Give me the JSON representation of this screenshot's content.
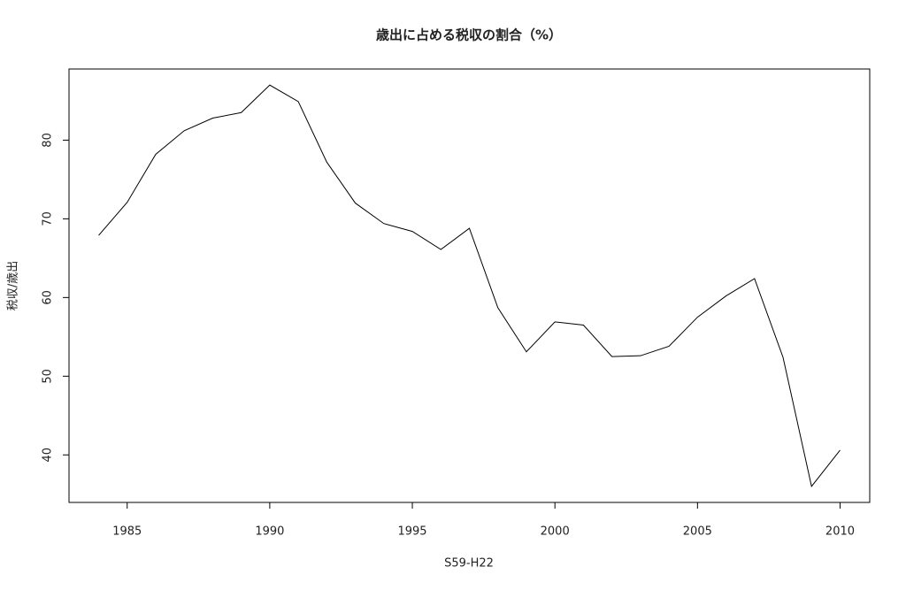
{
  "chart_data": {
    "type": "line",
    "title": "歳出に占める税収の割合（%）",
    "x_label": "S59-H22",
    "y_label": "税収/歳出",
    "x": [
      1984,
      1985,
      1986,
      1987,
      1988,
      1989,
      1990,
      1991,
      1992,
      1993,
      1994,
      1995,
      1996,
      1997,
      1998,
      1999,
      2000,
      2001,
      2002,
      2003,
      2004,
      2005,
      2006,
      2007,
      2008,
      2009,
      2010
    ],
    "values": [
      67.9,
      72.1,
      78.2,
      81.2,
      82.8,
      83.5,
      87.0,
      84.9,
      77.2,
      72.0,
      69.4,
      68.4,
      66.1,
      68.8,
      58.7,
      53.1,
      56.9,
      56.5,
      52.5,
      52.6,
      53.8,
      57.5,
      60.2,
      62.4,
      52.4,
      36.0,
      40.6
    ],
    "color": "#000000",
    "xlim": [
      1982.96,
      2011.04
    ],
    "xticks": [
      1985,
      1990,
      1995,
      2000,
      2005,
      2010
    ],
    "ylim": [
      33.96,
      89.04
    ],
    "yticks": [
      40,
      50,
      60,
      70,
      80
    ],
    "grid": false
  }
}
